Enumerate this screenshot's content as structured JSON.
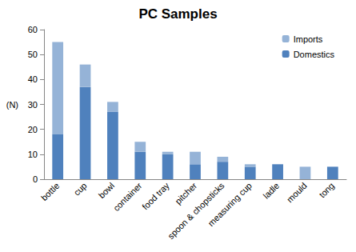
{
  "chart_data": {
    "type": "bar",
    "title": "PC Samples",
    "y_label": "(N)",
    "categories": [
      "bottle",
      "cup",
      "bowl",
      "container",
      "food tray",
      "pitcher",
      "spoon & chopsticks",
      "measuring cup",
      "ladle",
      "mould",
      "tong"
    ],
    "series": [
      {
        "name": "Domestics",
        "color": "#4f81bd",
        "values": [
          18,
          37,
          27,
          11,
          10,
          6,
          7,
          5,
          6,
          0,
          5
        ]
      },
      {
        "name": "Imports",
        "color": "#95b3d7",
        "values": [
          37,
          9,
          4,
          4,
          1,
          5,
          2,
          1,
          0,
          5,
          0
        ]
      }
    ],
    "stacked": true,
    "ylim": [
      0,
      60
    ],
    "yticks": [
      0,
      10,
      20,
      30,
      40,
      50,
      60
    ],
    "grid": false,
    "legend": "top-right"
  }
}
